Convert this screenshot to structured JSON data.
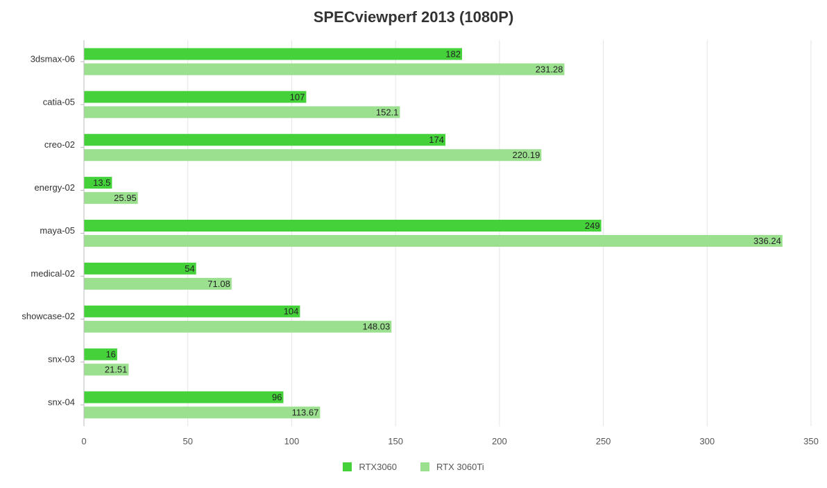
{
  "chart_data": {
    "type": "bar",
    "orientation": "horizontal",
    "title": "SPECviewperf 2013 (1080P)",
    "categories": [
      "3dsmax-06",
      "catia-05",
      "creo-02",
      "energy-02",
      "maya-05",
      "medical-02",
      "showcase-02",
      "snx-03",
      "snx-04"
    ],
    "series": [
      {
        "name": "RTX3060",
        "color": "#44d13a",
        "values": [
          182,
          107,
          174,
          13.5,
          249,
          54,
          104,
          16,
          96
        ]
      },
      {
        "name": "RTX 3060Ti",
        "color": "#9be08f",
        "values": [
          231.28,
          152.1,
          220.19,
          25.95,
          336.24,
          71.08,
          148.03,
          21.51,
          113.67
        ]
      }
    ],
    "xlim": [
      0,
      350
    ],
    "xticks": [
      0,
      50,
      100,
      150,
      200,
      250,
      300,
      350
    ],
    "grid": "vertical",
    "legend_position": "bottom-center",
    "data_labels": true
  }
}
